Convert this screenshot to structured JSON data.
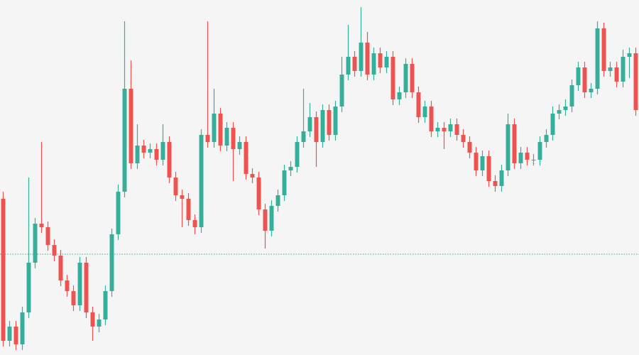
{
  "chart_data": {
    "type": "candlestick",
    "ylim": [
      0,
      500
    ],
    "up_color": "#35ae9a",
    "down_color": "#ef5350",
    "reference_line": {
      "value": 142,
      "color": "#35ae9a",
      "style": "dotted"
    },
    "open": [
      220,
      20,
      40,
      15,
      60,
      130,
      185,
      180,
      155,
      140,
      105,
      90,
      70,
      130,
      60,
      40,
      50,
      90,
      170,
      230,
      375,
      270,
      295,
      285,
      290,
      275,
      300,
      250,
      225,
      220,
      190,
      180,
      310,
      300,
      340,
      295,
      320,
      290,
      300,
      255,
      250,
      205,
      175,
      210,
      225,
      260,
      265,
      300,
      315,
      335,
      300,
      345,
      310,
      350,
      395,
      420,
      400,
      440,
      395,
      425,
      405,
      420,
      360,
      370,
      410,
      370,
      335,
      350,
      315,
      320,
      315,
      325,
      310,
      300,
      285,
      260,
      280,
      245,
      238,
      260,
      325,
      270,
      285,
      275,
      275,
      300,
      310,
      340,
      345,
      350,
      380,
      405,
      370,
      375,
      460,
      400,
      405,
      385,
      420,
      425
    ],
    "high": [
      230,
      48,
      48,
      68,
      250,
      193,
      300,
      188,
      163,
      148,
      113,
      98,
      138,
      138,
      68,
      58,
      98,
      178,
      240,
      470,
      415,
      325,
      303,
      298,
      298,
      325,
      308,
      258,
      233,
      228,
      198,
      318,
      470,
      375,
      348,
      328,
      328,
      308,
      308,
      263,
      258,
      213,
      218,
      233,
      268,
      273,
      308,
      375,
      355,
      343,
      353,
      353,
      358,
      420,
      465,
      428,
      490,
      455,
      433,
      433,
      428,
      428,
      378,
      418,
      418,
      378,
      358,
      358,
      328,
      328,
      333,
      333,
      318,
      308,
      293,
      288,
      288,
      253,
      268,
      340,
      333,
      293,
      293,
      283,
      308,
      318,
      350,
      353,
      360,
      388,
      413,
      413,
      383,
      470,
      468,
      413,
      413,
      430,
      433,
      433
    ],
    "low": [
      12,
      12,
      7,
      7,
      52,
      122,
      172,
      147,
      132,
      97,
      82,
      62,
      62,
      52,
      20,
      32,
      42,
      82,
      162,
      222,
      262,
      262,
      277,
      277,
      267,
      267,
      242,
      217,
      180,
      182,
      170,
      172,
      292,
      292,
      287,
      287,
      245,
      282,
      247,
      242,
      197,
      150,
      167,
      202,
      217,
      252,
      257,
      292,
      307,
      265,
      292,
      302,
      302,
      342,
      387,
      392,
      392,
      387,
      387,
      397,
      397,
      352,
      352,
      362,
      362,
      327,
      327,
      307,
      307,
      290,
      307,
      302,
      292,
      277,
      252,
      252,
      237,
      230,
      230,
      252,
      262,
      262,
      267,
      267,
      267,
      292,
      302,
      332,
      337,
      342,
      372,
      362,
      362,
      367,
      392,
      392,
      377,
      377,
      390,
      337
    ],
    "close": [
      20,
      40,
      15,
      60,
      130,
      185,
      180,
      155,
      140,
      105,
      90,
      70,
      130,
      60,
      40,
      50,
      90,
      170,
      230,
      375,
      270,
      295,
      285,
      290,
      275,
      300,
      250,
      225,
      220,
      190,
      180,
      310,
      300,
      340,
      295,
      320,
      290,
      300,
      255,
      250,
      205,
      175,
      210,
      225,
      260,
      265,
      300,
      315,
      335,
      300,
      345,
      310,
      350,
      395,
      420,
      400,
      440,
      395,
      425,
      405,
      420,
      360,
      370,
      410,
      370,
      335,
      350,
      315,
      320,
      315,
      325,
      310,
      300,
      285,
      260,
      280,
      245,
      238,
      260,
      325,
      270,
      285,
      275,
      275,
      300,
      310,
      340,
      345,
      350,
      380,
      405,
      370,
      375,
      460,
      400,
      405,
      385,
      420,
      425,
      345
    ]
  }
}
